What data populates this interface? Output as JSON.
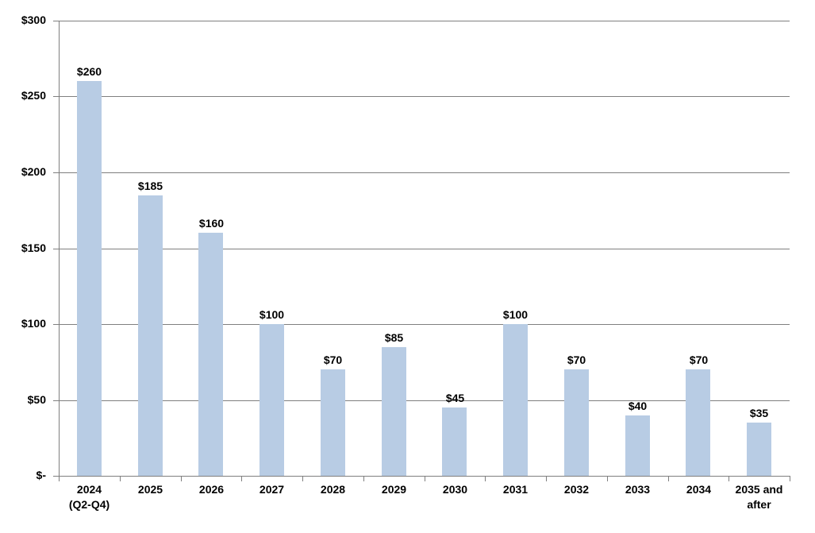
{
  "chart_data": {
    "type": "bar",
    "title": "",
    "xlabel": "",
    "ylabel": "",
    "categories": [
      "2024\n(Q2-Q4)",
      "2025",
      "2026",
      "2027",
      "2028",
      "2029",
      "2030",
      "2031",
      "2032",
      "2033",
      "2034",
      "2035 and\nafter"
    ],
    "values": [
      260,
      185,
      160,
      100,
      70,
      85,
      45,
      100,
      70,
      40,
      70,
      35
    ],
    "value_labels": [
      "$260",
      "$185",
      "$160",
      "$100",
      "$70",
      "$85",
      "$45",
      "$100",
      "$70",
      "$40",
      "$70",
      "$35"
    ],
    "y_ticks": [
      {
        "value": 300,
        "label": "$300"
      },
      {
        "value": 250,
        "label": "$250"
      },
      {
        "value": 200,
        "label": "$200"
      },
      {
        "value": 150,
        "label": "$150"
      },
      {
        "value": 100,
        "label": "$100"
      },
      {
        "value": 50,
        "label": "$50"
      },
      {
        "value": 0,
        "label": "$-"
      }
    ],
    "ylim": [
      0,
      300
    ],
    "grid": true,
    "legend": false,
    "colors": {
      "bar": "#B8CCE4",
      "gridline": "#7F7F7F",
      "axis": "#7F7F7F",
      "label": "#000000",
      "background": "#FFFFFF"
    }
  }
}
